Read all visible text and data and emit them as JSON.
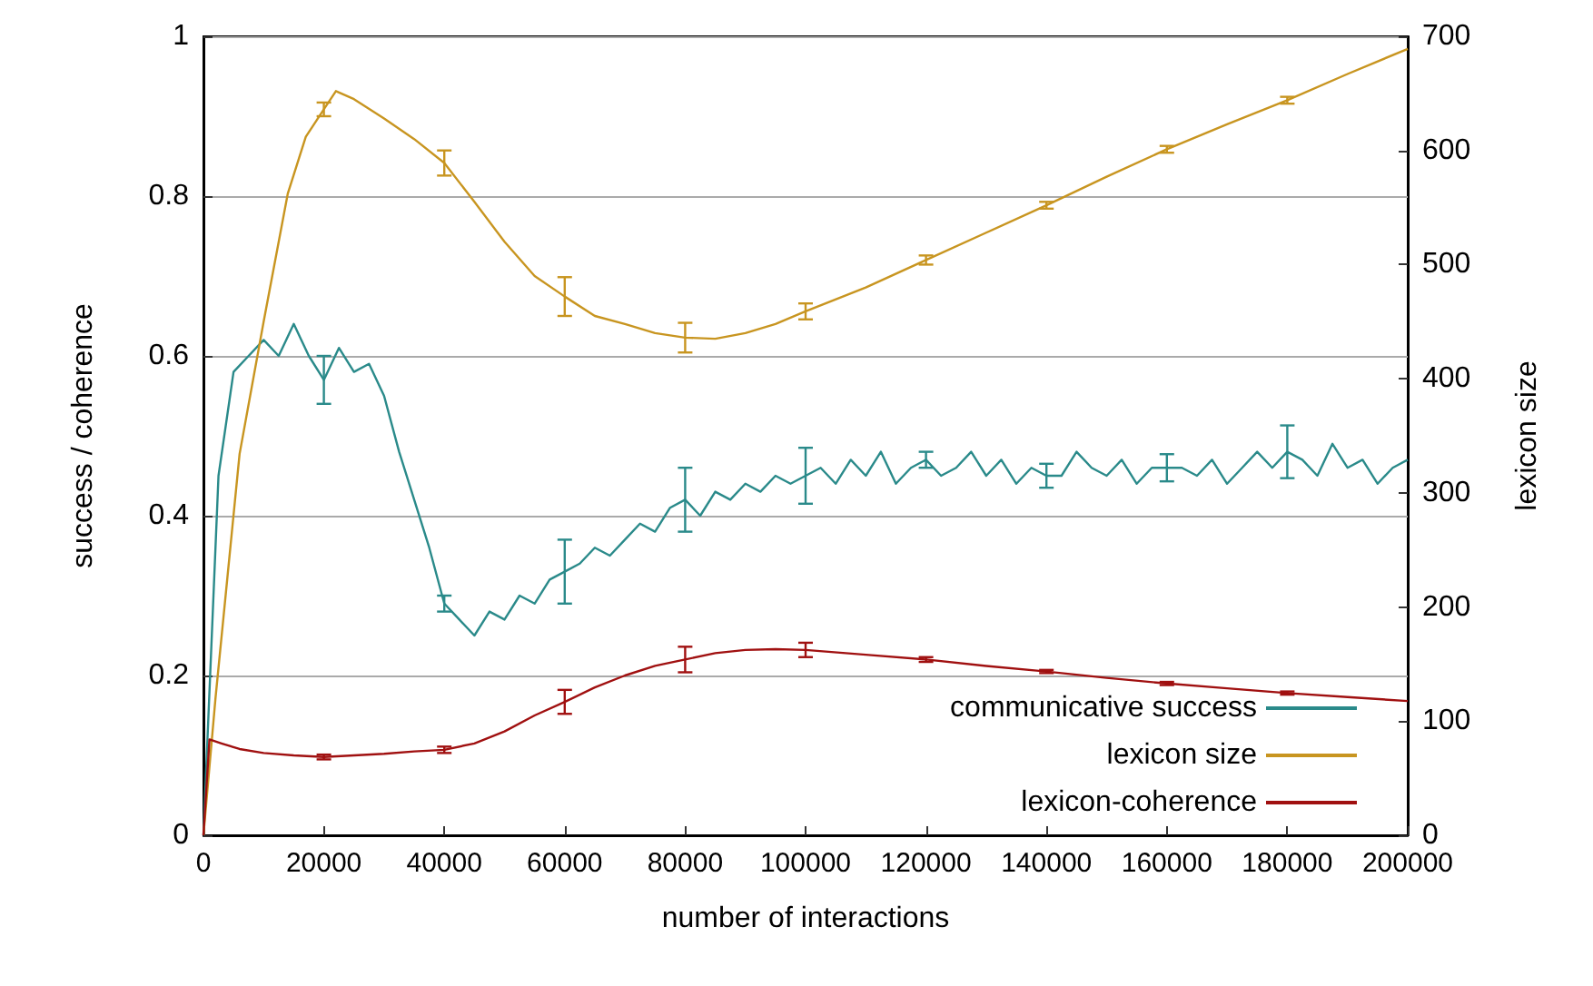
{
  "chart_data": {
    "type": "line",
    "xlabel": "number of interactions",
    "ylabel": "success / coherence",
    "y2label": "lexicon size",
    "xlim": [
      0,
      200000
    ],
    "xticks": [
      0,
      20000,
      40000,
      60000,
      80000,
      100000,
      120000,
      140000,
      160000,
      180000,
      200000
    ],
    "ylim": [
      0,
      1
    ],
    "yticks": [
      0,
      0.2,
      0.4,
      0.6,
      0.8,
      1
    ],
    "y2lim": [
      0,
      700
    ],
    "y2ticks": [
      0,
      100,
      200,
      300,
      400,
      500,
      600,
      700
    ],
    "grid": "y",
    "legend": "bottom right",
    "marker": "none",
    "line_style": "solid",
    "series": [
      {
        "name": "communicative success",
        "color": "#2a8a8a",
        "x": [
          0,
          2500,
          5000,
          7500,
          10000,
          12500,
          15000,
          17500,
          20000,
          22500,
          25000,
          27500,
          30000,
          32500,
          35000,
          37500,
          40000,
          42500,
          45000,
          47500,
          50000,
          52500,
          55000,
          57500,
          60000,
          62500,
          65000,
          67500,
          70000,
          72500,
          75000,
          77500,
          80000,
          82500,
          85000,
          87500,
          90000,
          92500,
          95000,
          97500,
          100000,
          102500,
          105000,
          107500,
          110000,
          112500,
          115000,
          117500,
          120000,
          122500,
          125000,
          127500,
          130000,
          132500,
          135000,
          137500,
          140000,
          142500,
          145000,
          147500,
          150000,
          152500,
          155000,
          157500,
          160000,
          162500,
          165000,
          167500,
          170000,
          172500,
          175000,
          177500,
          180000,
          182500,
          185000,
          187500,
          190000,
          192500,
          195000,
          197500,
          200000
        ],
        "values": [
          0,
          0.45,
          0.58,
          0.6,
          0.62,
          0.6,
          0.64,
          0.6,
          0.57,
          0.61,
          0.58,
          0.59,
          0.55,
          0.48,
          0.42,
          0.36,
          0.29,
          0.27,
          0.25,
          0.28,
          0.27,
          0.3,
          0.29,
          0.32,
          0.33,
          0.34,
          0.36,
          0.35,
          0.37,
          0.39,
          0.38,
          0.41,
          0.42,
          0.4,
          0.43,
          0.42,
          0.44,
          0.43,
          0.45,
          0.44,
          0.45,
          0.46,
          0.44,
          0.47,
          0.45,
          0.48,
          0.44,
          0.46,
          0.47,
          0.45,
          0.46,
          0.48,
          0.45,
          0.47,
          0.44,
          0.46,
          0.45,
          0.45,
          0.48,
          0.46,
          0.45,
          0.47,
          0.44,
          0.46,
          0.46,
          0.46,
          0.45,
          0.47,
          0.44,
          0.46,
          0.48,
          0.46,
          0.48,
          0.47,
          0.45,
          0.49,
          0.46,
          0.47,
          0.44,
          0.46,
          0.47
        ],
        "errors": [
          null,
          null,
          null,
          null,
          null,
          null,
          null,
          null,
          0.03,
          null,
          null,
          null,
          null,
          null,
          null,
          null,
          0.01,
          null,
          null,
          null,
          null,
          null,
          null,
          null,
          0.04,
          null,
          null,
          null,
          null,
          null,
          null,
          null,
          0.04,
          null,
          null,
          null,
          null,
          null,
          null,
          null,
          0.035,
          null,
          null,
          null,
          null,
          null,
          null,
          null,
          0.01,
          null,
          null,
          null,
          null,
          null,
          null,
          null,
          0.015,
          null,
          null,
          null,
          null,
          null,
          null,
          null,
          0.017,
          null,
          null,
          null,
          null,
          null,
          null,
          null,
          0.033,
          null,
          null,
          null,
          null,
          null,
          null,
          null,
          null
        ]
      },
      {
        "name": "lexicon size",
        "color": "#c89520",
        "axis": "y2",
        "x": [
          0,
          2000,
          6000,
          10000,
          14000,
          17000,
          20000,
          22000,
          25000,
          30000,
          35000,
          40000,
          45000,
          50000,
          55000,
          60000,
          65000,
          70000,
          75000,
          80000,
          85000,
          90000,
          95000,
          100000,
          110000,
          120000,
          130000,
          140000,
          150000,
          160000,
          170000,
          180000,
          190000,
          200000
        ],
        "values": [
          0,
          120,
          334,
          450,
          562,
          612,
          636,
          652,
          645,
          628,
          610,
          589,
          555,
          520,
          490,
          472,
          455,
          448,
          440,
          436,
          435,
          440,
          448,
          459,
          480,
          504,
          528,
          552,
          577,
          601,
          623,
          644,
          667,
          689
        ],
        "errors": [
          null,
          null,
          null,
          null,
          null,
          null,
          6,
          null,
          null,
          null,
          null,
          11,
          null,
          null,
          null,
          17,
          null,
          null,
          null,
          13,
          null,
          null,
          null,
          7,
          null,
          4,
          null,
          3,
          null,
          3,
          null,
          3,
          null,
          null
        ]
      },
      {
        "name": "lexicon-coherence",
        "color": "#a01010",
        "x": [
          0,
          1000,
          3000,
          6000,
          10000,
          15000,
          20000,
          25000,
          30000,
          35000,
          40000,
          45000,
          50000,
          55000,
          60000,
          65000,
          70000,
          75000,
          80000,
          85000,
          90000,
          95000,
          100000,
          110000,
          120000,
          130000,
          140000,
          150000,
          160000,
          170000,
          180000,
          190000,
          200000
        ],
        "values": [
          0,
          0.12,
          0.115,
          0.108,
          0.103,
          0.1,
          0.098,
          0.1,
          0.102,
          0.105,
          0.107,
          0.115,
          0.13,
          0.15,
          0.167,
          0.185,
          0.2,
          0.212,
          0.22,
          0.228,
          0.232,
          0.233,
          0.232,
          0.226,
          0.22,
          0.212,
          0.205,
          0.197,
          0.19,
          0.184,
          0.178,
          0.173,
          0.168
        ],
        "errors": [
          null,
          null,
          null,
          null,
          null,
          null,
          0.003,
          null,
          null,
          null,
          0.004,
          null,
          null,
          null,
          0.015,
          null,
          null,
          null,
          0.016,
          null,
          null,
          null,
          0.009,
          null,
          0.003,
          null,
          0.002,
          null,
          0.002,
          null,
          0.002,
          null,
          null
        ]
      }
    ]
  }
}
